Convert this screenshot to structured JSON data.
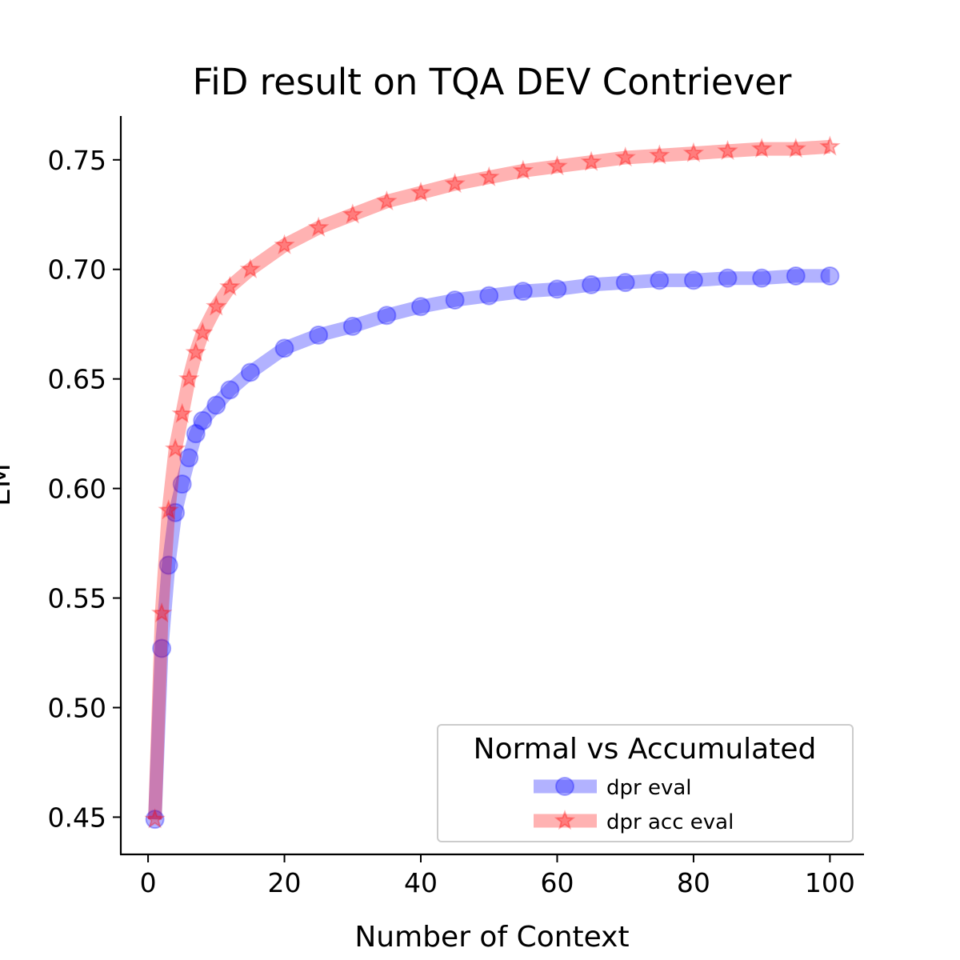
{
  "chart_data": {
    "type": "line",
    "title": "FiD result on TQA DEV Contriever",
    "xlabel": "Number of Context",
    "ylabel": "EM",
    "xlim": [
      -4,
      105
    ],
    "ylim": [
      0.433,
      0.77
    ],
    "xticks": [
      "0",
      "20",
      "40",
      "60",
      "80",
      "100"
    ],
    "xtick_values": [
      0,
      20,
      40,
      60,
      80,
      100
    ],
    "yticks": [
      "0.45",
      "0.50",
      "0.55",
      "0.60",
      "0.65",
      "0.70",
      "0.75"
    ],
    "ytick_values": [
      0.45,
      0.5,
      0.55,
      0.6,
      0.65,
      0.7,
      0.75
    ],
    "grid": false,
    "legend": {
      "title": "Normal vs Accumulated",
      "placement": "lower-right"
    },
    "series": [
      {
        "name": "dpr eval",
        "color": "#0000ff",
        "marker": "circle",
        "x": [
          1,
          2,
          3,
          4,
          5,
          6,
          7,
          8,
          10,
          12,
          15,
          20,
          25,
          30,
          35,
          40,
          45,
          50,
          55,
          60,
          65,
          70,
          75,
          80,
          85,
          90,
          95,
          100
        ],
        "values": [
          0.449,
          0.527,
          0.565,
          0.589,
          0.602,
          0.614,
          0.625,
          0.631,
          0.638,
          0.645,
          0.653,
          0.664,
          0.67,
          0.674,
          0.679,
          0.683,
          0.686,
          0.688,
          0.69,
          0.691,
          0.693,
          0.694,
          0.695,
          0.695,
          0.696,
          0.696,
          0.697,
          0.697
        ]
      },
      {
        "name": "dpr acc eval",
        "color": "#ff0000",
        "marker": "star",
        "x": [
          1,
          2,
          3,
          4,
          5,
          6,
          7,
          8,
          10,
          12,
          15,
          20,
          25,
          30,
          35,
          40,
          45,
          50,
          55,
          60,
          65,
          70,
          75,
          80,
          85,
          90,
          95,
          100
        ],
        "values": [
          0.449,
          0.543,
          0.59,
          0.618,
          0.634,
          0.65,
          0.662,
          0.671,
          0.683,
          0.692,
          0.7,
          0.711,
          0.719,
          0.725,
          0.731,
          0.735,
          0.739,
          0.742,
          0.745,
          0.747,
          0.749,
          0.751,
          0.752,
          0.753,
          0.754,
          0.755,
          0.755,
          0.756
        ]
      }
    ]
  }
}
